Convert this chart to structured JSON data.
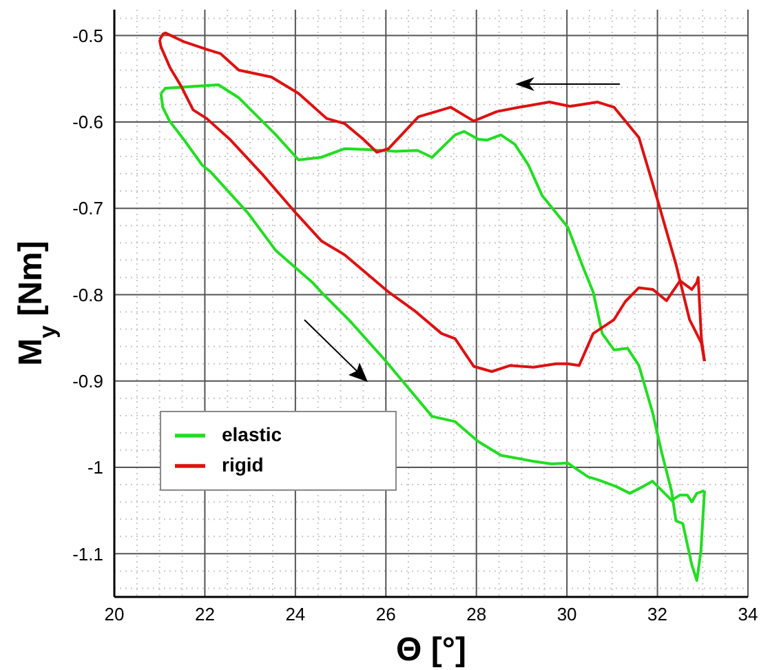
{
  "chart_data": {
    "type": "line",
    "xlabel": "Θ [°]",
    "ylabel": "M$_{y}$ [Nm]",
    "xlim": [
      20,
      34
    ],
    "xticks": [
      20,
      {
        "value": 20.5,
        "label": null
      },
      {
        "value": 21,
        "label": null
      },
      {
        "value": 21.5,
        "label": null
      },
      22,
      {
        "value": 22.5,
        "label": null
      },
      {
        "value": 23,
        "label": null
      },
      {
        "value": 23.5,
        "label": null
      },
      24,
      {
        "value": 24.5,
        "label": null
      },
      {
        "value": 25,
        "label": null
      },
      {
        "value": 25.5,
        "label": null
      },
      26,
      {
        "value": 26.5,
        "label": null
      },
      {
        "value": 27,
        "label": null
      },
      {
        "value": 27.5,
        "label": null
      },
      28,
      {
        "value": 28.5,
        "label": null
      },
      {
        "value": 29,
        "label": null
      },
      {
        "value": 29.5,
        "label": null
      },
      30,
      {
        "value": 30.5,
        "label": null
      },
      {
        "value": 31,
        "label": null
      },
      {
        "value": 31.5,
        "label": null
      },
      32,
      {
        "value": 32.5,
        "label": null
      },
      {
        "value": 33,
        "label": null
      },
      {
        "value": 33.5,
        "label": null
      },
      34
    ],
    "ylim": [
      -1.15,
      -0.47
    ],
    "yticks": [
      {
        "value": -1.14,
        "label": null
      },
      {
        "value": -1.12,
        "label": null
      },
      -1.1,
      {
        "value": -1.08,
        "label": null
      },
      {
        "value": -1.06,
        "label": null
      },
      {
        "value": -1.04,
        "label": null
      },
      {
        "value": -1.02,
        "label": null
      },
      -1,
      {
        "value": -0.98,
        "label": null
      },
      {
        "value": -0.96,
        "label": null
      },
      {
        "value": -0.94,
        "label": null
      },
      {
        "value": -0.92,
        "label": null
      },
      -0.9,
      {
        "value": -0.88,
        "label": null
      },
      {
        "value": -0.86,
        "label": null
      },
      {
        "value": -0.84,
        "label": null
      },
      {
        "value": -0.82,
        "label": null
      },
      -0.8,
      {
        "value": -0.78,
        "label": null
      },
      {
        "value": -0.76,
        "label": null
      },
      {
        "value": -0.74,
        "label": null
      },
      {
        "value": -0.72,
        "label": null
      },
      -0.7,
      {
        "value": -0.68,
        "label": null
      },
      {
        "value": -0.66,
        "label": null
      },
      {
        "value": -0.64,
        "label": null
      },
      {
        "value": -0.62,
        "label": null
      },
      -0.6,
      {
        "value": -0.58,
        "label": null
      },
      {
        "value": -0.56,
        "label": null
      },
      {
        "value": -0.54,
        "label": null
      },
      {
        "value": -0.52,
        "label": null
      },
      -0.5,
      {
        "value": -0.48,
        "label": null
      }
    ],
    "grid": true,
    "legend": "bottom left",
    "marker": "none",
    "line_style": "solid",
    "series": [
      {
        "name": "elastic",
        "color": "#22dd22",
        "x": [
          21.03,
          21.13,
          22.3,
          22.75,
          23.57,
          24.07,
          24.57,
          25.09,
          25.6,
          26.21,
          26.7,
          27.02,
          27.53,
          27.73,
          28.04,
          28.24,
          28.54,
          28.85,
          29.15,
          29.45,
          30.02,
          30.37,
          30.58,
          30.78,
          31.04,
          31.34,
          31.59,
          31.89,
          32.1,
          32.31,
          32.41,
          32.56,
          32.76,
          32.87,
          32.96,
          33.04
        ],
        "values": [
          -0.567,
          -0.561,
          -0.557,
          -0.572,
          -0.615,
          -0.644,
          -0.641,
          -0.631,
          -0.632,
          -0.634,
          -0.633,
          -0.641,
          -0.615,
          -0.611,
          -0.62,
          -0.621,
          -0.615,
          -0.626,
          -0.65,
          -0.685,
          -0.722,
          -0.77,
          -0.797,
          -0.845,
          -0.864,
          -0.862,
          -0.882,
          -0.936,
          -0.984,
          -1.027,
          -1.062,
          -1.065,
          -1.113,
          -1.131,
          -1.097,
          -1.027
        ]
      },
      {
        "color": "#22dd22",
        "x": [
          21.03,
          21.07,
          21.22,
          21.53,
          21.94,
          22.13,
          22.96,
          23.57,
          24.38,
          24.57,
          25.18,
          26.0,
          26.51,
          27.02,
          27.53,
          28.04,
          28.54,
          29.26,
          29.66,
          30.02,
          30.47,
          30.67,
          31.08,
          31.39,
          31.69,
          31.89,
          32.31,
          32.5,
          32.66,
          32.76,
          32.87,
          33.04
        ],
        "values": [
          -0.567,
          -0.583,
          -0.599,
          -0.62,
          -0.65,
          -0.658,
          -0.706,
          -0.749,
          -0.786,
          -0.797,
          -0.829,
          -0.877,
          -0.909,
          -0.941,
          -0.947,
          -0.97,
          -0.986,
          -0.993,
          -0.996,
          -0.995,
          -1.011,
          -1.014,
          -1.022,
          -1.03,
          -1.022,
          -1.016,
          -1.038,
          -1.032,
          -1.032,
          -1.04,
          -1.03,
          -1.027
        ]
      },
      {
        "name": "rigid",
        "color": "#dd1111",
        "x": [
          21.0,
          21.08,
          21.13,
          21.53,
          22.04,
          22.35,
          22.75,
          23.47,
          24.07,
          24.69,
          25.09,
          25.5,
          25.8,
          26.06,
          26.72,
          27.43,
          27.94,
          28.45,
          28.95,
          29.61,
          30.07,
          30.68,
          31.04,
          31.59,
          32.0,
          32.41,
          32.71,
          32.76,
          32.97,
          33.04
        ],
        "values": [
          -0.505,
          -0.498,
          -0.497,
          -0.507,
          -0.516,
          -0.521,
          -0.54,
          -0.548,
          -0.567,
          -0.596,
          -0.602,
          -0.62,
          -0.635,
          -0.631,
          -0.594,
          -0.583,
          -0.599,
          -0.588,
          -0.583,
          -0.577,
          -0.582,
          -0.577,
          -0.583,
          -0.618,
          -0.69,
          -0.765,
          -0.829,
          -0.834,
          -0.856,
          -0.877
        ]
      },
      {
        "color": "#dd1111",
        "x": [
          21.0,
          21.03,
          21.23,
          21.48,
          21.74,
          22.04,
          22.55,
          23.26,
          24.02,
          24.58,
          25.09,
          26.06,
          26.62,
          27.23,
          27.53,
          27.94,
          28.34,
          28.75,
          29.26,
          29.76,
          30.02,
          30.27,
          30.58,
          31.04,
          31.29,
          31.59,
          31.9,
          32.2,
          32.5,
          32.76,
          32.87,
          32.9,
          32.97,
          33.04
        ],
        "values": [
          -0.505,
          -0.513,
          -0.537,
          -0.559,
          -0.586,
          -0.596,
          -0.62,
          -0.66,
          -0.706,
          -0.738,
          -0.754,
          -0.797,
          -0.818,
          -0.845,
          -0.851,
          -0.883,
          -0.889,
          -0.882,
          -0.884,
          -0.88,
          -0.88,
          -0.882,
          -0.845,
          -0.829,
          -0.808,
          -0.792,
          -0.794,
          -0.807,
          -0.784,
          -0.794,
          -0.786,
          -0.78,
          -0.85,
          -0.877
        ]
      }
    ]
  }
}
